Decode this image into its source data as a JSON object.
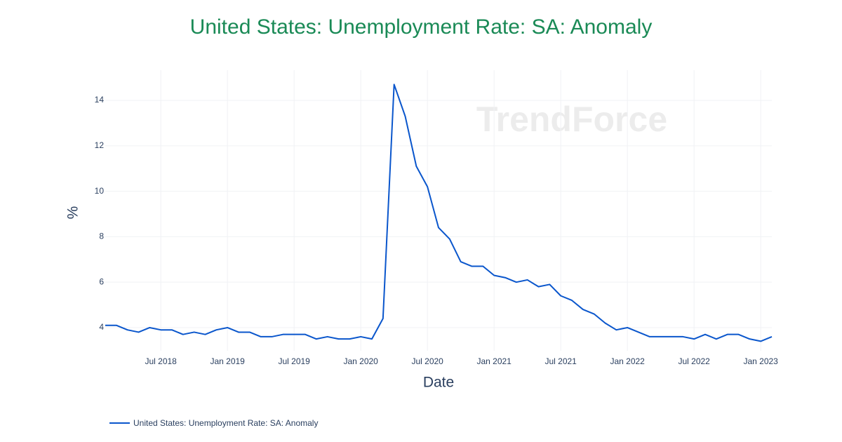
{
  "chart_data": {
    "type": "line",
    "title": "United States: Unemployment Rate: SA: Anomaly",
    "watermark": "TrendForce",
    "x_label": "Date",
    "y_label": "%",
    "x": [
      "2018-02",
      "2018-03",
      "2018-04",
      "2018-05",
      "2018-06",
      "2018-07",
      "2018-08",
      "2018-09",
      "2018-10",
      "2018-11",
      "2018-12",
      "2019-01",
      "2019-02",
      "2019-03",
      "2019-04",
      "2019-05",
      "2019-06",
      "2019-07",
      "2019-08",
      "2019-09",
      "2019-10",
      "2019-11",
      "2019-12",
      "2020-01",
      "2020-02",
      "2020-03",
      "2020-04",
      "2020-05",
      "2020-06",
      "2020-07",
      "2020-08",
      "2020-09",
      "2020-10",
      "2020-11",
      "2020-12",
      "2021-01",
      "2021-02",
      "2021-03",
      "2021-04",
      "2021-05",
      "2021-06",
      "2021-07",
      "2021-08",
      "2021-09",
      "2021-10",
      "2021-11",
      "2021-12",
      "2022-01",
      "2022-02",
      "2022-03",
      "2022-04",
      "2022-05",
      "2022-06",
      "2022-07",
      "2022-08",
      "2022-09",
      "2022-10",
      "2022-11",
      "2022-12",
      "2023-01",
      "2023-02"
    ],
    "series": [
      {
        "name": "United States: Unemployment Rate: SA: Anomaly",
        "color": "#0a56cc",
        "values": [
          4.1,
          4.1,
          3.9,
          3.8,
          4.0,
          3.9,
          3.9,
          3.7,
          3.8,
          3.7,
          3.9,
          4.0,
          3.8,
          3.8,
          3.6,
          3.6,
          3.7,
          3.7,
          3.7,
          3.5,
          3.6,
          3.5,
          3.5,
          3.6,
          3.5,
          4.4,
          14.7,
          13.3,
          11.1,
          10.2,
          8.4,
          7.9,
          6.9,
          6.7,
          6.7,
          6.3,
          6.2,
          6.0,
          6.1,
          5.8,
          5.9,
          5.4,
          5.2,
          4.8,
          4.6,
          4.2,
          3.9,
          4.0,
          3.8,
          3.6,
          3.6,
          3.6,
          3.6,
          3.5,
          3.7,
          3.5,
          3.7,
          3.7,
          3.5,
          3.4,
          3.6
        ]
      }
    ],
    "xlim": [
      "2018-02",
      "2023-02"
    ],
    "xticks": [
      {
        "value": "2018-07",
        "label": "Jul 2018"
      },
      {
        "value": "2019-01",
        "label": "Jan 2019"
      },
      {
        "value": "2019-07",
        "label": "Jul 2019"
      },
      {
        "value": "2020-01",
        "label": "Jan 2020"
      },
      {
        "value": "2020-07",
        "label": "Jul 2020"
      },
      {
        "value": "2021-01",
        "label": "Jan 2021"
      },
      {
        "value": "2021-07",
        "label": "Jul 2021"
      },
      {
        "value": "2022-01",
        "label": "Jan 2022"
      },
      {
        "value": "2022-07",
        "label": "Jul 2022"
      },
      {
        "value": "2023-01",
        "label": "Jan 2023"
      }
    ],
    "ylim": [
      2.98,
      15.33
    ],
    "yticks": [
      4,
      6,
      8,
      10,
      12,
      14
    ],
    "grid": true
  }
}
